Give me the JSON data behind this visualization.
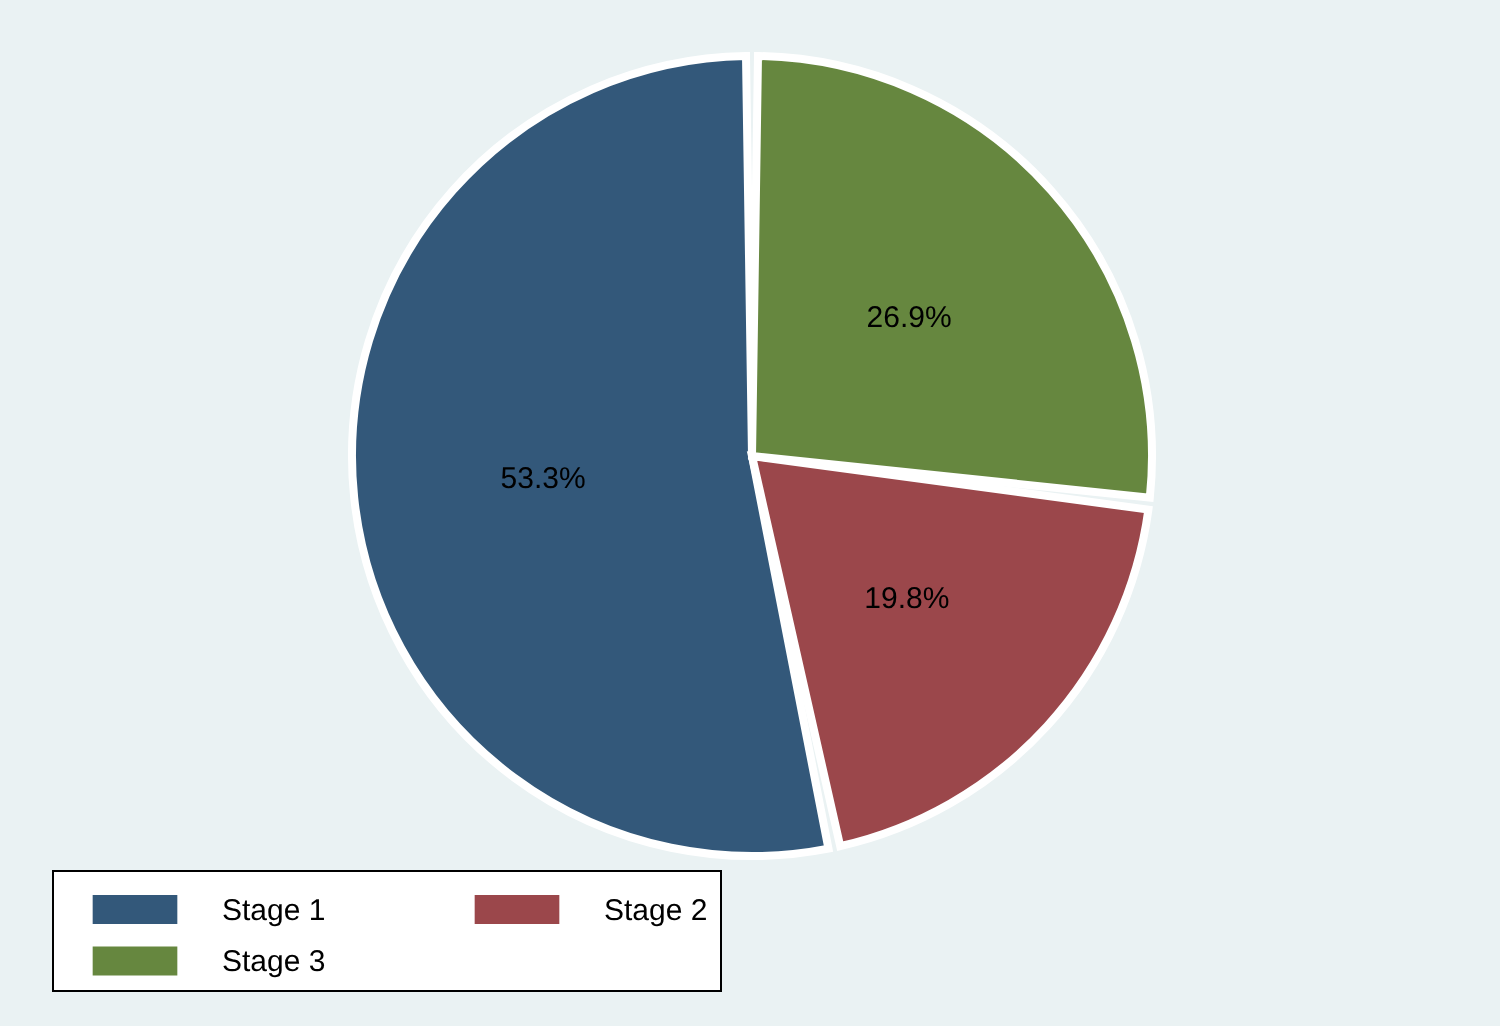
{
  "chart_data": {
    "type": "pie",
    "categories": [
      "Stage 1",
      "Stage 2",
      "Stage 3"
    ],
    "values": [
      53.3,
      19.8,
      26.9
    ],
    "colors": [
      "#33587a",
      "#9b474b",
      "#66873f"
    ],
    "value_labels": [
      "53.3%",
      "19.8%",
      "26.9%"
    ],
    "legend": "bottom"
  }
}
